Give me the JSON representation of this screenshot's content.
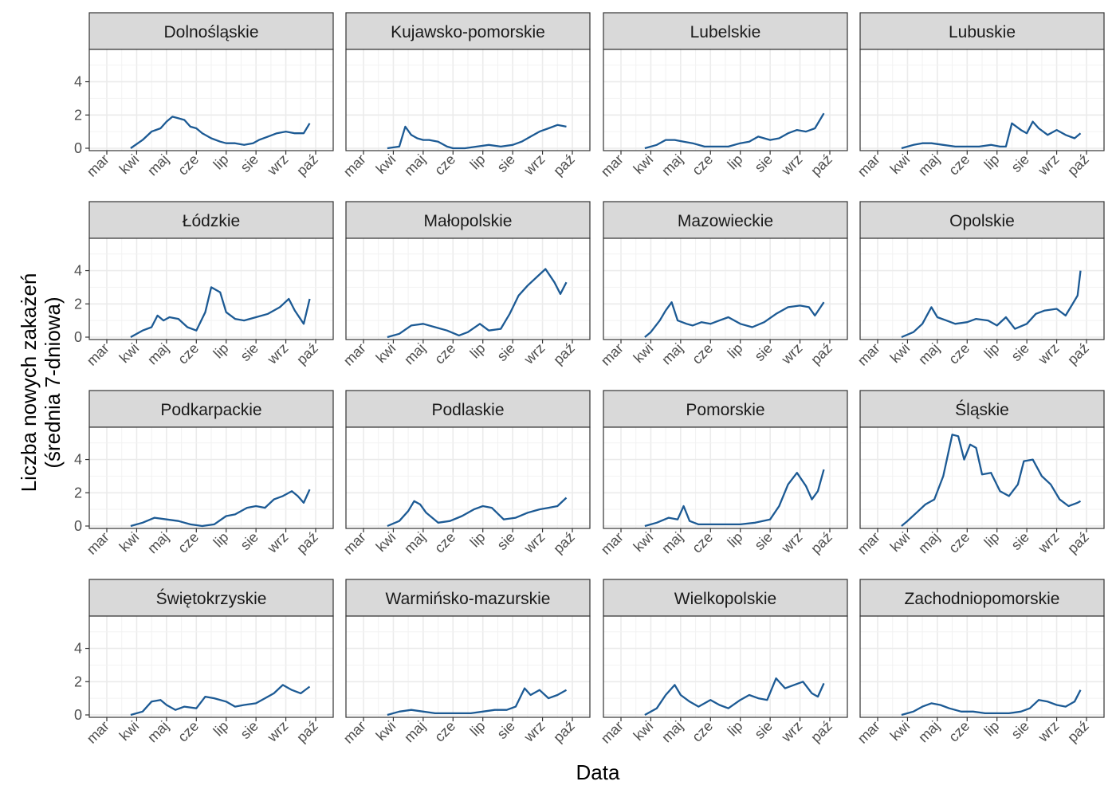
{
  "chart_data": {
    "type": "line",
    "xlabel": "Data",
    "ylabel_line1": "Liczba nowych zakażeń",
    "ylabel_line2": "(średnia 7-dniowa)",
    "x_ticks": [
      "mar",
      "kwi",
      "maj",
      "cze",
      "lip",
      "sie",
      "wrz",
      "paź"
    ],
    "y_ticks": [
      0,
      2,
      4
    ],
    "ylim": [
      0,
      5.8
    ],
    "xlim_months": [
      0,
      7
    ],
    "line_color": "#1c5a94",
    "strip_fill": "#d9d9d9",
    "grid": true,
    "panels": [
      {
        "name": "Dolnośląskie",
        "x": [
          0.8,
          1.2,
          1.5,
          1.8,
          2.0,
          2.2,
          2.4,
          2.6,
          2.8,
          3.0,
          3.2,
          3.5,
          3.8,
          4.0,
          4.3,
          4.6,
          4.9,
          5.1,
          5.4,
          5.7,
          6.0,
          6.3,
          6.6,
          6.8
        ],
        "y": [
          0.0,
          0.5,
          1.0,
          1.2,
          1.6,
          1.9,
          1.8,
          1.7,
          1.3,
          1.2,
          0.9,
          0.6,
          0.4,
          0.3,
          0.3,
          0.2,
          0.3,
          0.5,
          0.7,
          0.9,
          1.0,
          0.9,
          0.9,
          1.5
        ]
      },
      {
        "name": "Kujawsko-pomorskie",
        "x": [
          0.8,
          1.2,
          1.4,
          1.6,
          1.8,
          2.0,
          2.2,
          2.5,
          2.8,
          3.0,
          3.4,
          3.8,
          4.2,
          4.6,
          5.0,
          5.3,
          5.6,
          5.9,
          6.2,
          6.5,
          6.8
        ],
        "y": [
          0.0,
          0.1,
          1.3,
          0.8,
          0.6,
          0.5,
          0.5,
          0.4,
          0.1,
          0.0,
          0.0,
          0.1,
          0.2,
          0.1,
          0.2,
          0.4,
          0.7,
          1.0,
          1.2,
          1.4,
          1.3
        ]
      },
      {
        "name": "Lubelskie",
        "x": [
          0.8,
          1.2,
          1.5,
          1.8,
          2.1,
          2.4,
          2.8,
          3.2,
          3.6,
          4.0,
          4.3,
          4.6,
          5.0,
          5.3,
          5.6,
          5.9,
          6.2,
          6.5,
          6.8
        ],
        "y": [
          0.0,
          0.2,
          0.5,
          0.5,
          0.4,
          0.3,
          0.1,
          0.1,
          0.1,
          0.3,
          0.4,
          0.7,
          0.5,
          0.6,
          0.9,
          1.1,
          1.0,
          1.2,
          2.1
        ]
      },
      {
        "name": "Lubuskie",
        "x": [
          0.8,
          1.2,
          1.5,
          1.8,
          2.2,
          2.6,
          3.0,
          3.4,
          3.8,
          4.1,
          4.3,
          4.5,
          4.8,
          5.0,
          5.2,
          5.4,
          5.7,
          6.0,
          6.3,
          6.6,
          6.8
        ],
        "y": [
          0.0,
          0.2,
          0.3,
          0.3,
          0.2,
          0.1,
          0.1,
          0.1,
          0.2,
          0.1,
          0.1,
          1.5,
          1.1,
          0.9,
          1.6,
          1.2,
          0.8,
          1.1,
          0.8,
          0.6,
          0.9
        ]
      },
      {
        "name": "Łódzkie",
        "x": [
          0.8,
          1.2,
          1.5,
          1.7,
          1.9,
          2.1,
          2.4,
          2.7,
          3.0,
          3.3,
          3.5,
          3.8,
          4.0,
          4.3,
          4.6,
          5.0,
          5.4,
          5.8,
          6.1,
          6.3,
          6.6,
          6.8
        ],
        "y": [
          0.0,
          0.4,
          0.6,
          1.3,
          1.0,
          1.2,
          1.1,
          0.6,
          0.4,
          1.5,
          3.0,
          2.7,
          1.5,
          1.1,
          1.0,
          1.2,
          1.4,
          1.8,
          2.3,
          1.6,
          0.8,
          2.3
        ]
      },
      {
        "name": "Małopolskie",
        "x": [
          0.8,
          1.2,
          1.6,
          2.0,
          2.4,
          2.8,
          3.2,
          3.5,
          3.9,
          4.2,
          4.6,
          4.9,
          5.2,
          5.5,
          5.8,
          6.1,
          6.4,
          6.6,
          6.8
        ],
        "y": [
          0.0,
          0.2,
          0.7,
          0.8,
          0.6,
          0.4,
          0.1,
          0.3,
          0.8,
          0.4,
          0.5,
          1.4,
          2.5,
          3.1,
          3.6,
          4.1,
          3.3,
          2.6,
          3.3
        ]
      },
      {
        "name": "Mazowieckie",
        "x": [
          0.8,
          1.0,
          1.3,
          1.5,
          1.7,
          1.9,
          2.2,
          2.4,
          2.7,
          3.0,
          3.3,
          3.6,
          4.0,
          4.4,
          4.8,
          5.2,
          5.6,
          6.0,
          6.3,
          6.5,
          6.8
        ],
        "y": [
          0.0,
          0.3,
          1.0,
          1.6,
          2.1,
          1.0,
          0.8,
          0.7,
          0.9,
          0.8,
          1.0,
          1.2,
          0.8,
          0.6,
          0.9,
          1.4,
          1.8,
          1.9,
          1.8,
          1.3,
          2.1
        ]
      },
      {
        "name": "Opolskie",
        "x": [
          0.8,
          1.2,
          1.5,
          1.8,
          2.0,
          2.3,
          2.6,
          3.0,
          3.3,
          3.7,
          4.0,
          4.3,
          4.6,
          5.0,
          5.3,
          5.6,
          6.0,
          6.3,
          6.5,
          6.7,
          6.8
        ],
        "y": [
          0.0,
          0.3,
          0.8,
          1.8,
          1.2,
          1.0,
          0.8,
          0.9,
          1.1,
          1.0,
          0.7,
          1.2,
          0.5,
          0.8,
          1.4,
          1.6,
          1.7,
          1.3,
          1.9,
          2.5,
          4.0
        ]
      },
      {
        "name": "Podkarpackie",
        "x": [
          0.8,
          1.2,
          1.6,
          2.0,
          2.4,
          2.8,
          3.2,
          3.6,
          4.0,
          4.3,
          4.7,
          5.0,
          5.3,
          5.6,
          5.9,
          6.2,
          6.4,
          6.6,
          6.8
        ],
        "y": [
          0.0,
          0.2,
          0.5,
          0.4,
          0.3,
          0.1,
          0.0,
          0.1,
          0.6,
          0.7,
          1.1,
          1.2,
          1.1,
          1.6,
          1.8,
          2.1,
          1.8,
          1.4,
          2.2
        ]
      },
      {
        "name": "Podlaskie",
        "x": [
          0.8,
          1.2,
          1.5,
          1.7,
          1.9,
          2.1,
          2.5,
          2.9,
          3.3,
          3.7,
          4.0,
          4.3,
          4.7,
          5.1,
          5.5,
          5.9,
          6.2,
          6.5,
          6.8
        ],
        "y": [
          0.0,
          0.3,
          0.9,
          1.5,
          1.3,
          0.8,
          0.2,
          0.3,
          0.6,
          1.0,
          1.2,
          1.1,
          0.4,
          0.5,
          0.8,
          1.0,
          1.1,
          1.2,
          1.7
        ]
      },
      {
        "name": "Pomorskie",
        "x": [
          0.8,
          1.2,
          1.6,
          1.9,
          2.1,
          2.3,
          2.6,
          3.0,
          3.5,
          4.0,
          4.5,
          5.0,
          5.3,
          5.6,
          5.9,
          6.2,
          6.4,
          6.6,
          6.8
        ],
        "y": [
          0.0,
          0.2,
          0.5,
          0.4,
          1.2,
          0.3,
          0.1,
          0.1,
          0.1,
          0.1,
          0.2,
          0.4,
          1.2,
          2.5,
          3.2,
          2.4,
          1.6,
          2.1,
          3.4
        ]
      },
      {
        "name": "Śląskie",
        "x": [
          0.8,
          1.0,
          1.3,
          1.6,
          1.9,
          2.2,
          2.5,
          2.7,
          2.9,
          3.1,
          3.3,
          3.5,
          3.8,
          4.1,
          4.4,
          4.7,
          4.9,
          5.2,
          5.5,
          5.8,
          6.1,
          6.4,
          6.7,
          6.8
        ],
        "y": [
          0.0,
          0.3,
          0.8,
          1.3,
          1.6,
          3.0,
          5.5,
          5.4,
          4.0,
          4.9,
          4.7,
          3.1,
          3.2,
          2.1,
          1.8,
          2.5,
          3.9,
          4.0,
          3.0,
          2.5,
          1.6,
          1.2,
          1.4,
          1.5
        ]
      },
      {
        "name": "Świętokrzyskie",
        "x": [
          0.8,
          1.2,
          1.5,
          1.8,
          2.0,
          2.3,
          2.6,
          3.0,
          3.3,
          3.6,
          4.0,
          4.3,
          4.6,
          5.0,
          5.3,
          5.6,
          5.9,
          6.2,
          6.5,
          6.8
        ],
        "y": [
          0.0,
          0.2,
          0.8,
          0.9,
          0.6,
          0.3,
          0.5,
          0.4,
          1.1,
          1.0,
          0.8,
          0.5,
          0.6,
          0.7,
          1.0,
          1.3,
          1.8,
          1.5,
          1.3,
          1.7
        ]
      },
      {
        "name": "Warmińsko-mazurskie",
        "x": [
          0.8,
          1.2,
          1.6,
          2.0,
          2.4,
          2.8,
          3.2,
          3.6,
          4.0,
          4.4,
          4.8,
          5.1,
          5.4,
          5.6,
          5.9,
          6.2,
          6.5,
          6.8
        ],
        "y": [
          0.0,
          0.2,
          0.3,
          0.2,
          0.1,
          0.1,
          0.1,
          0.1,
          0.2,
          0.3,
          0.3,
          0.5,
          1.6,
          1.2,
          1.5,
          1.0,
          1.2,
          1.5
        ]
      },
      {
        "name": "Wielkopolskie",
        "x": [
          0.8,
          1.2,
          1.5,
          1.8,
          2.0,
          2.3,
          2.6,
          3.0,
          3.3,
          3.6,
          4.0,
          4.3,
          4.6,
          4.9,
          5.2,
          5.5,
          5.8,
          6.1,
          6.4,
          6.6,
          6.8
        ],
        "y": [
          0.0,
          0.4,
          1.2,
          1.8,
          1.2,
          0.8,
          0.5,
          0.9,
          0.6,
          0.4,
          0.9,
          1.2,
          1.0,
          0.9,
          2.2,
          1.6,
          1.8,
          2.0,
          1.3,
          1.1,
          1.9
        ]
      },
      {
        "name": "Zachodniopomorskie",
        "x": [
          0.8,
          1.2,
          1.5,
          1.8,
          2.1,
          2.4,
          2.8,
          3.2,
          3.6,
          4.0,
          4.4,
          4.8,
          5.1,
          5.4,
          5.7,
          6.0,
          6.3,
          6.6,
          6.8
        ],
        "y": [
          0.0,
          0.2,
          0.5,
          0.7,
          0.6,
          0.4,
          0.2,
          0.2,
          0.1,
          0.1,
          0.1,
          0.2,
          0.4,
          0.9,
          0.8,
          0.6,
          0.5,
          0.8,
          1.5
        ]
      }
    ]
  }
}
